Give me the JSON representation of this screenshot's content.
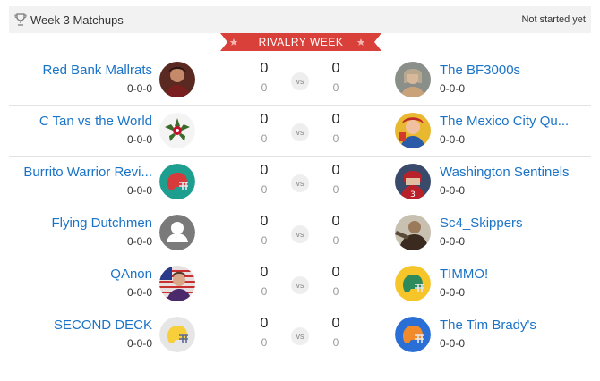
{
  "header": {
    "title": "Week 3 Matchups",
    "status": "Not started yet",
    "icon": "trophy-icon"
  },
  "banner": {
    "label": "RIVALRY WEEK",
    "color": "#d9403a"
  },
  "vs_label": "vs",
  "matchups": [
    {
      "home": {
        "name": "Red Bank Mallrats",
        "record": "0-0-0",
        "score": "0",
        "projected": "0",
        "avatar": "photo-avatar"
      },
      "away": {
        "name": "The BF3000s",
        "record": "0-0-0",
        "score": "0",
        "projected": "0",
        "avatar": "photo-avatar"
      }
    },
    {
      "home": {
        "name": "C Tan vs the World",
        "record": "0-0-0",
        "score": "0",
        "projected": "0",
        "avatar": "ohio-state-logo"
      },
      "away": {
        "name": "The Mexico City Qu...",
        "record": "0-0-0",
        "score": "0",
        "projected": "0",
        "avatar": "photo-avatar"
      }
    },
    {
      "home": {
        "name": "Burrito Warrior Revi...",
        "record": "0-0-0",
        "score": "0",
        "projected": "0",
        "avatar": "helmet-avatar-teal"
      },
      "away": {
        "name": "Washington Sentinels",
        "record": "0-0-0",
        "score": "0",
        "projected": "0",
        "avatar": "photo-avatar"
      }
    },
    {
      "home": {
        "name": "Flying Dutchmen",
        "record": "0-0-0",
        "score": "0",
        "projected": "0",
        "avatar": "default-user-avatar"
      },
      "away": {
        "name": "Sc4_Skippers",
        "record": "0-0-0",
        "score": "0",
        "projected": "0",
        "avatar": "photo-avatar"
      }
    },
    {
      "home": {
        "name": "QAnon",
        "record": "0-0-0",
        "score": "0",
        "projected": "0",
        "avatar": "photo-avatar"
      },
      "away": {
        "name": "TIMMO!",
        "record": "0-0-0",
        "score": "0",
        "projected": "0",
        "avatar": "helmet-avatar-yellow"
      }
    },
    {
      "home": {
        "name": "SECOND DECK",
        "record": "0-0-0",
        "score": "0",
        "projected": "0",
        "avatar": "helmet-avatar-light"
      },
      "away": {
        "name": "The Tim Brady's",
        "record": "0-0-0",
        "score": "0",
        "projected": "0",
        "avatar": "helmet-avatar-blue"
      }
    }
  ],
  "colors": {
    "link": "#1a73c7",
    "header_bg": "#f2f2f2",
    "divider": "#e3e3e3"
  }
}
